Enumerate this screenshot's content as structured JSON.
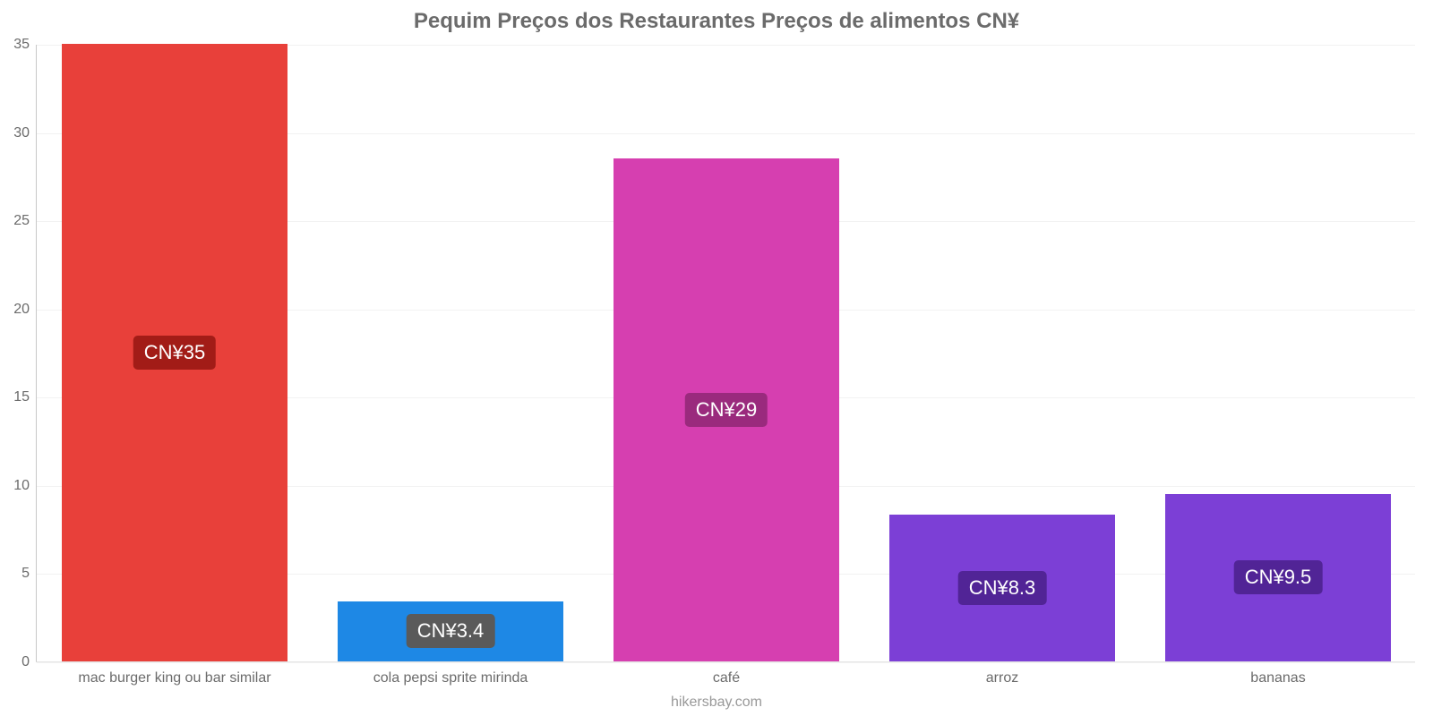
{
  "chart": {
    "type": "bar",
    "title": "Pequim Preços dos Restaurantes Preços de alimentos CN¥",
    "title_fontsize": 24,
    "title_color": "#6b6b6b",
    "background_color": "#ffffff",
    "grid_color": "#f2f2f2",
    "axis_line_color": "#c8c8c8",
    "tick_label_color": "#6b6b6b",
    "tick_label_fontsize": 16,
    "value_label_fontsize": 22,
    "ylim": [
      0,
      35
    ],
    "ytick_step": 5,
    "yticks": [
      0,
      5,
      10,
      15,
      20,
      25,
      30,
      35
    ],
    "bar_width_ratio": 0.82,
    "categories": [
      "mac burger king ou bar similar",
      "cola pepsi sprite mirinda",
      "café",
      "arroz",
      "bananas"
    ],
    "values": [
      35,
      3.4,
      28.5,
      8.3,
      9.5
    ],
    "value_labels": [
      "CN¥35",
      "CN¥3.4",
      "CN¥29",
      "CN¥8.3",
      "CN¥9.5"
    ],
    "bar_colors": [
      "#e8403a",
      "#1e88e5",
      "#d63fb0",
      "#7c3fd6",
      "#7c3fd6"
    ],
    "badge_colors": [
      "#a21c17",
      "#5a5a5a",
      "#9a2a7d",
      "#512496",
      "#512496"
    ],
    "badge_text_color": "#ffffff",
    "credit": "hikersbay.com",
    "credit_color": "#999999"
  }
}
